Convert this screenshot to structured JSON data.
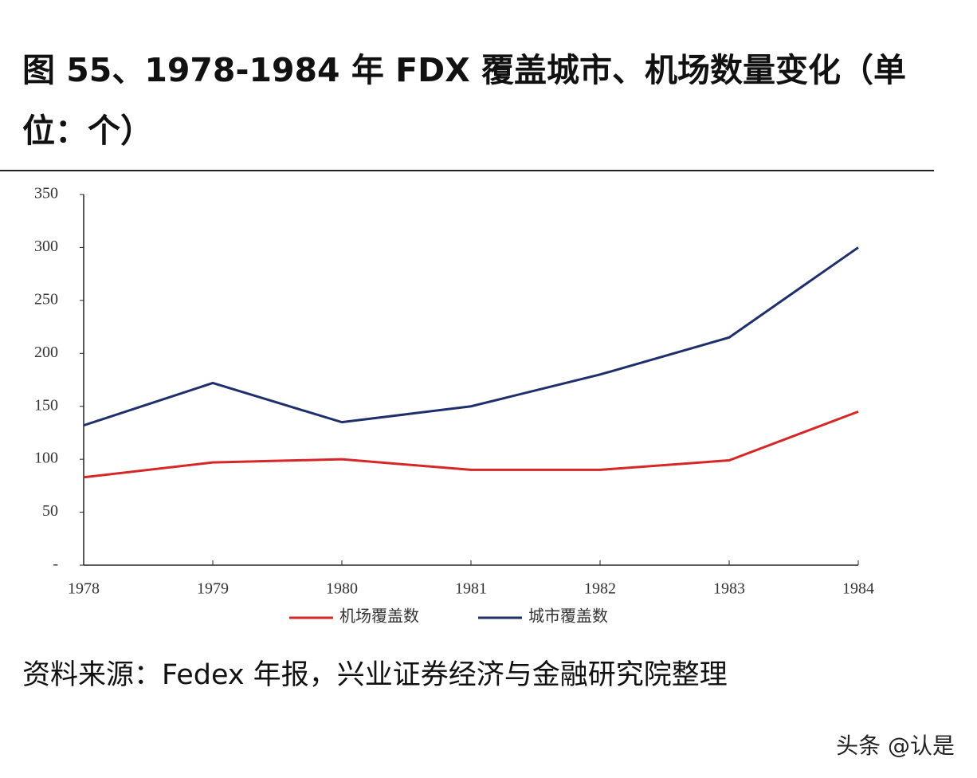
{
  "chart_data": {
    "type": "line",
    "title": "图 55、1978-1984 年 FDX 覆盖城市、机场数量变化（单位：个）",
    "x": [
      1978,
      1979,
      1980,
      1981,
      1982,
      1983,
      1984
    ],
    "xlim": [
      1978,
      1984
    ],
    "xticks": [
      1978,
      1979,
      1980,
      1981,
      1982,
      1983,
      1984
    ],
    "ylim": [
      0,
      350
    ],
    "yticks": [
      {
        "value": 0,
        "label": "-"
      },
      50,
      100,
      150,
      200,
      250,
      300,
      350
    ],
    "series": [
      {
        "name": "机场覆盖数",
        "color": "#d62728",
        "values": [
          83,
          97,
          100,
          90,
          90,
          99,
          145
        ]
      },
      {
        "name": "城市覆盖数",
        "color": "#1f2f6b",
        "values": [
          132,
          172,
          135,
          150,
          180,
          215,
          300
        ]
      }
    ],
    "source": "资料来源：Fedex 年报，兴业证券经济与金融研究院整理",
    "watermark": "头条 @认是"
  }
}
